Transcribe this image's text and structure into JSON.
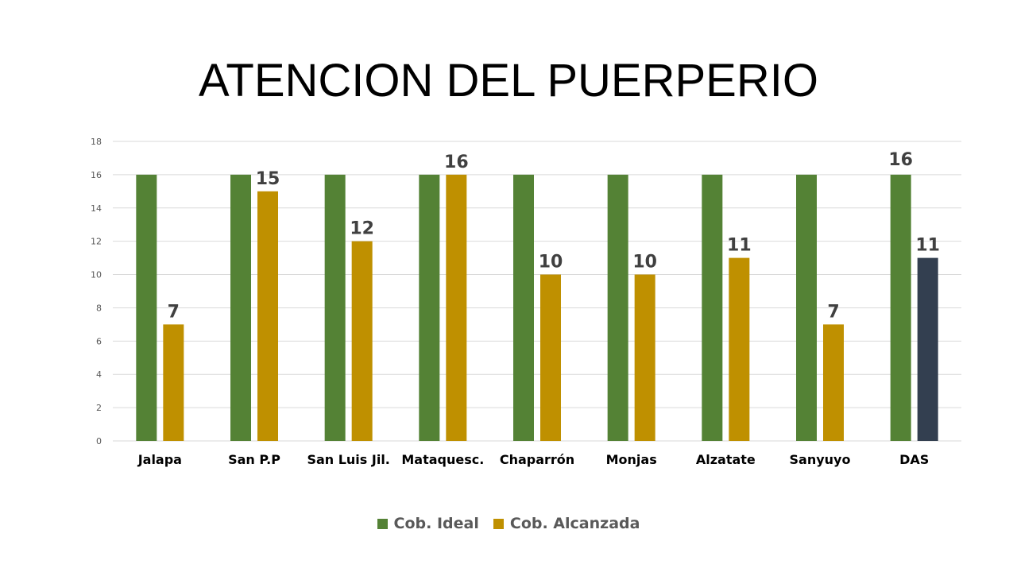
{
  "title": "ATENCION DEL PUERPERIO",
  "colors": {
    "ideal": "#548235",
    "alcanzada": "#BF9000",
    "highlight": "#333F50",
    "grid": "#D9D9D9",
    "tick_text": "#595959",
    "label_text": "#404040"
  },
  "chart_data": {
    "type": "bar",
    "title": "ATENCION DEL PUERPERIO",
    "categories": [
      "Jalapa",
      "San P.P",
      "San Luis Jil.",
      "Mataquesc.",
      "Chaparrón",
      "Monjas",
      "Alzatate",
      "Sanyuyo",
      "DAS"
    ],
    "series": [
      {
        "name": "Cob. Ideal",
        "values": [
          16,
          16,
          16,
          16,
          16,
          16,
          16,
          16,
          16
        ],
        "color": "#548235",
        "show_labels": false
      },
      {
        "name": "Cob. Alcanzada",
        "values": [
          7,
          15,
          12,
          16,
          10,
          10,
          11,
          7,
          11
        ],
        "color": "#BF9000",
        "highlight_index": 8,
        "highlight_color": "#333F50",
        "show_labels": true
      }
    ],
    "data_labels": [
      "7",
      "15",
      "12",
      "16",
      "10",
      "10",
      "11",
      "7",
      "11"
    ],
    "extra_labels": [
      {
        "category_index": 8,
        "series_index": 0,
        "text": "16"
      }
    ],
    "ylim": [
      0,
      18
    ],
    "yticks": [
      "0",
      "2",
      "4",
      "6",
      "8",
      "10",
      "12",
      "14",
      "16",
      "18"
    ],
    "grid": true,
    "legend": "bottom",
    "xlabel": "",
    "ylabel": ""
  }
}
